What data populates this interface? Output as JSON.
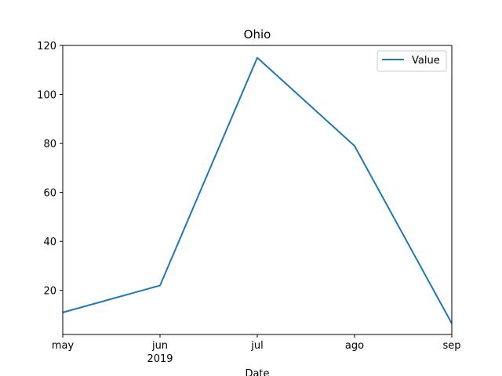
{
  "chart_data": {
    "type": "line",
    "title": "Ohio",
    "xlabel": "Date",
    "ylabel": "",
    "x": [
      "may",
      "jun",
      "jul",
      "ago",
      "sep"
    ],
    "x_secondary_label": "2019",
    "ylim": [
      2,
      120
    ],
    "yticks": [
      20,
      40,
      60,
      80,
      100,
      120
    ],
    "grid": false,
    "legend_position": "top-right",
    "series": [
      {
        "name": "Value",
        "color": "#1f77b4",
        "values": [
          11,
          22,
          115,
          79,
          6.5
        ]
      }
    ]
  }
}
